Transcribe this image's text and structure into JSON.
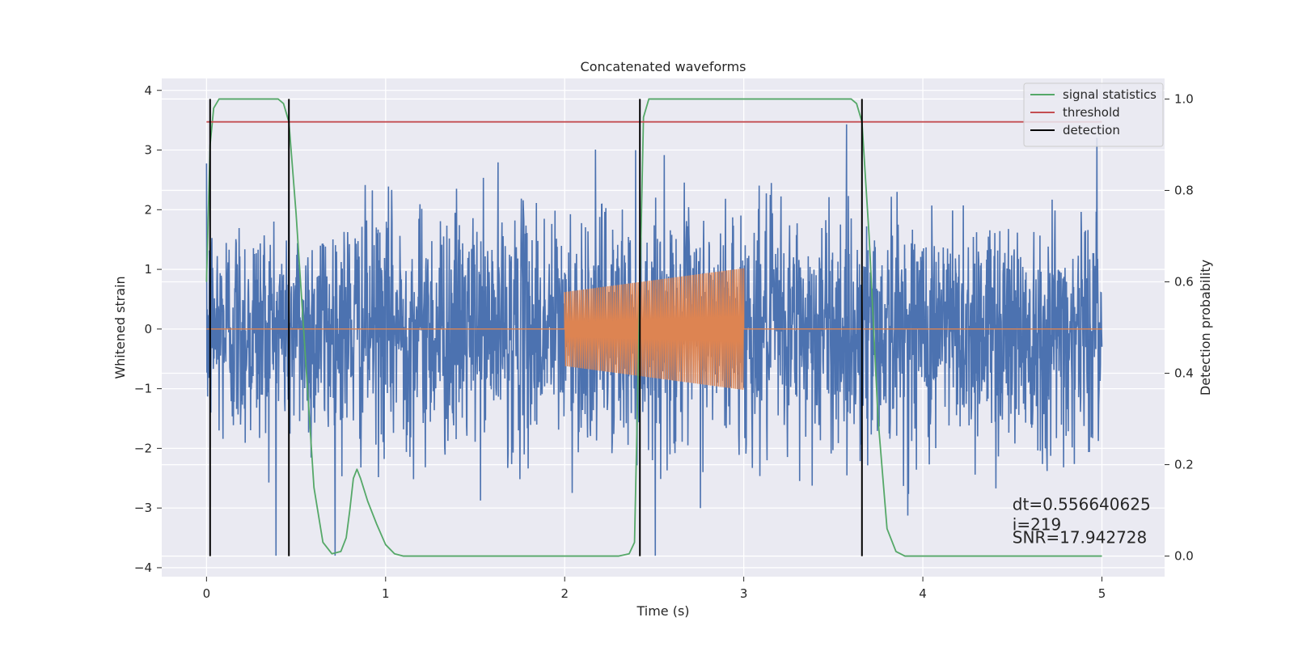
{
  "chart_data": {
    "type": "line",
    "title": "Concatenated waveforms",
    "xlabel": "Time (s)",
    "ylabel": "Whitened strain",
    "y2label": "Detection probability",
    "xlim": [
      -0.25,
      5.35
    ],
    "ylim": [
      -4.15,
      4.2
    ],
    "y2lim": [
      -0.045,
      1.045
    ],
    "xticks": [
      0,
      1,
      2,
      3,
      4,
      5
    ],
    "xtick_labels": [
      "0",
      "1",
      "2",
      "3",
      "4",
      "5"
    ],
    "yticks": [
      -4,
      -3,
      -2,
      -1,
      0,
      1,
      2,
      3,
      4
    ],
    "ytick_labels": [
      "−4",
      "−3",
      "−2",
      "−1",
      "0",
      "1",
      "2",
      "3",
      "4"
    ],
    "y2ticks": [
      0.0,
      0.2,
      0.4,
      0.6,
      0.8,
      1.0
    ],
    "y2tick_labels": [
      "0.0",
      "0.2",
      "0.4",
      "0.6",
      "0.8",
      "1.0"
    ],
    "grid": true,
    "legend_position": "top-right",
    "series": [
      {
        "name": "",
        "kind": "noise",
        "axis": "left",
        "color": "#4c72b0",
        "x_range": [
          0,
          5
        ],
        "envelope_abs_max": 3.8,
        "sample_count": 2500
      },
      {
        "name": "",
        "kind": "chirp",
        "axis": "left",
        "color": "#dd8452",
        "x_range": [
          0,
          5
        ],
        "active_range": [
          2.0,
          3.0
        ],
        "amplitude_start": 0.62,
        "amplitude_end": 1.02,
        "cycles": 95
      },
      {
        "name": "signal statistics",
        "axis": "right",
        "color": "#55a868",
        "x": [
          0.0,
          0.02,
          0.04,
          0.07,
          0.1,
          0.4,
          0.43,
          0.46,
          0.5,
          0.55,
          0.6,
          0.65,
          0.7,
          0.75,
          0.78,
          0.8,
          0.82,
          0.84,
          0.86,
          0.9,
          0.95,
          1.0,
          1.05,
          1.1,
          2.3,
          2.36,
          2.39,
          2.41,
          2.44,
          2.47,
          2.5,
          3.6,
          3.63,
          3.66,
          3.7,
          3.75,
          3.8,
          3.85,
          3.9,
          5.0
        ],
        "y": [
          0.6,
          0.9,
          0.98,
          1.0,
          1.0,
          1.0,
          0.99,
          0.95,
          0.75,
          0.45,
          0.15,
          0.03,
          0.005,
          0.01,
          0.04,
          0.1,
          0.17,
          0.19,
          0.17,
          0.12,
          0.07,
          0.025,
          0.005,
          0.0,
          0.0,
          0.005,
          0.03,
          0.4,
          0.96,
          1.0,
          1.0,
          1.0,
          0.99,
          0.95,
          0.7,
          0.3,
          0.06,
          0.01,
          0.0,
          0.0
        ]
      },
      {
        "name": "threshold",
        "axis": "right",
        "color": "#c44e52",
        "x": [
          0,
          5
        ],
        "y": [
          0.95,
          0.95
        ]
      },
      {
        "name": "detection",
        "axis": "right",
        "color": "#000000",
        "vlines": [
          0.02,
          0.46,
          2.42,
          3.66
        ],
        "ymin": 0.0,
        "ymax": 1.0
      }
    ],
    "annotations": [
      {
        "text": "dt=0.556640625",
        "x": 4.5,
        "y": -3.03
      },
      {
        "text": " i=219",
        "x": 4.5,
        "y": -3.37
      },
      {
        "text": "SNR=17.942728",
        "x": 4.5,
        "y": -3.59
      }
    ]
  }
}
